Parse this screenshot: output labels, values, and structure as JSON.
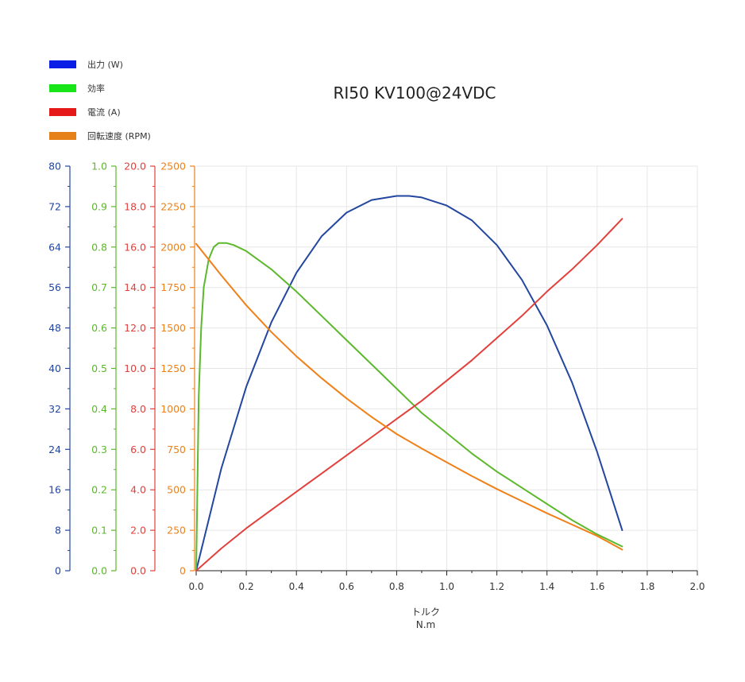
{
  "chart_data": {
    "type": "line",
    "title": "RI50 KV100@24VDC",
    "xlabel": "トルク",
    "xunit": "N.m",
    "xlim": [
      0,
      2.0
    ],
    "x_ticks": [
      "0.0",
      "0.2",
      "0.4",
      "0.6",
      "0.8",
      "1.0",
      "1.2",
      "1.4",
      "1.6",
      "1.8",
      "2.0"
    ],
    "grid": true,
    "legend_placement": "top-left",
    "y_axes": [
      {
        "id": "power",
        "color": "#2346a0",
        "ylim": [
          0,
          80
        ],
        "ticks": [
          "0",
          "8",
          "16",
          "24",
          "32",
          "40",
          "48",
          "56",
          "64",
          "72",
          "80"
        ]
      },
      {
        "id": "efficiency",
        "color": "#5cb82c",
        "ylim": [
          0,
          1.0
        ],
        "ticks": [
          "0.0",
          "0.1",
          "0.2",
          "0.3",
          "0.4",
          "0.5",
          "0.6",
          "0.7",
          "0.8",
          "0.9",
          "1.0"
        ]
      },
      {
        "id": "current",
        "color": "#e2403c",
        "ylim": [
          0,
          20.0
        ],
        "ticks": [
          "0.0",
          "2.0",
          "4.0",
          "6.0",
          "8.0",
          "10.0",
          "12.0",
          "14.0",
          "16.0",
          "18.0",
          "20.0"
        ]
      },
      {
        "id": "speed",
        "color": "#f08018",
        "ylim": [
          0,
          2500
        ],
        "ticks": [
          "0",
          "250",
          "500",
          "750",
          "1000",
          "1250",
          "1500",
          "1750",
          "2000",
          "2250",
          "2500"
        ]
      }
    ],
    "series": [
      {
        "name": "出力 (W)",
        "axis": "power",
        "color": "#2346a0",
        "legend_color": "#0a1ee6",
        "x": [
          0,
          0.1,
          0.2,
          0.3,
          0.4,
          0.5,
          0.6,
          0.7,
          0.8,
          0.85,
          0.9,
          1.0,
          1.1,
          1.2,
          1.3,
          1.4,
          1.5,
          1.6,
          1.7
        ],
        "y": [
          0,
          20.2,
          36.4,
          49.1,
          58.9,
          66.1,
          70.8,
          73.3,
          74.1,
          74.1,
          73.8,
          72.2,
          69.3,
          64.4,
          57.5,
          48.5,
          37.2,
          23.5,
          8.0
        ]
      },
      {
        "name": "効率",
        "axis": "efficiency",
        "color": "#5cb82c",
        "legend_color": "#19e619",
        "x": [
          0,
          0.003,
          0.01,
          0.02,
          0.03,
          0.05,
          0.07,
          0.09,
          0.12,
          0.15,
          0.2,
          0.3,
          0.4,
          0.5,
          0.6,
          0.7,
          0.8,
          0.9,
          1.0,
          1.1,
          1.2,
          1.3,
          1.4,
          1.5,
          1.6,
          1.7
        ],
        "y": [
          0,
          0.12,
          0.43,
          0.6,
          0.7,
          0.77,
          0.8,
          0.81,
          0.81,
          0.805,
          0.79,
          0.745,
          0.69,
          0.63,
          0.57,
          0.51,
          0.45,
          0.39,
          0.34,
          0.29,
          0.245,
          0.205,
          0.165,
          0.125,
          0.09,
          0.06
        ]
      },
      {
        "name": "電流 (A)",
        "axis": "current",
        "color": "#e2403c",
        "legend_color": "#e61919",
        "x": [
          0,
          0.1,
          0.2,
          0.3,
          0.4,
          0.5,
          0.6,
          0.7,
          0.8,
          0.9,
          1.0,
          1.1,
          1.2,
          1.3,
          1.4,
          1.5,
          1.6,
          1.7
        ],
        "y": [
          0,
          1.1,
          2.1,
          3.0,
          3.9,
          4.8,
          5.7,
          6.6,
          7.5,
          8.4,
          9.4,
          10.4,
          11.5,
          12.6,
          13.8,
          14.9,
          16.1,
          17.4
        ]
      },
      {
        "name": "回転速度 (RPM)",
        "axis": "speed",
        "color": "#f08018",
        "legend_color": "#e68019",
        "x": [
          0,
          0.1,
          0.2,
          0.3,
          0.4,
          0.5,
          0.6,
          0.7,
          0.8,
          0.9,
          1.0,
          1.1,
          1.2,
          1.3,
          1.4,
          1.5,
          1.6,
          1.7
        ],
        "y": [
          2020,
          1825,
          1640,
          1475,
          1325,
          1190,
          1065,
          950,
          845,
          755,
          670,
          585,
          505,
          430,
          355,
          285,
          215,
          130
        ]
      }
    ]
  }
}
